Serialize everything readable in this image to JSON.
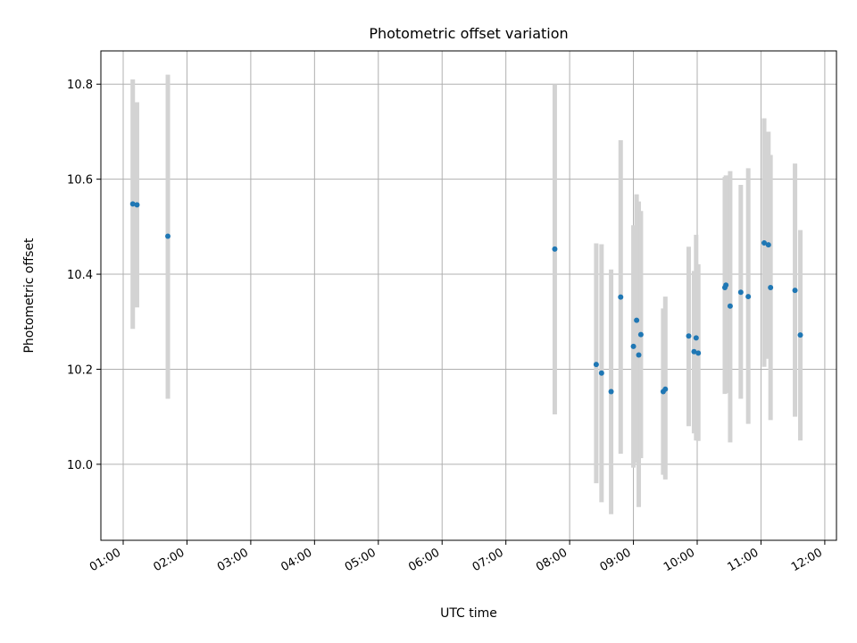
{
  "chart_data": {
    "type": "scatter",
    "title": "Photometric offset variation",
    "xlabel": "UTC time",
    "ylabel": "Photometric offset",
    "x_tick_labels": [
      "01:00",
      "02:00",
      "03:00",
      "04:00",
      "05:00",
      "06:00",
      "07:00",
      "08:00",
      "09:00",
      "10:00",
      "11:00",
      "12:00"
    ],
    "xlim": [
      "00:39",
      "12:11"
    ],
    "ylim": [
      9.84,
      10.87
    ],
    "y_ticks": [
      10.0,
      10.2,
      10.4,
      10.6,
      10.8
    ],
    "y_tick_labels": [
      "10.0",
      "10.2",
      "10.4",
      "10.6",
      "10.8"
    ],
    "grid": true,
    "marker_color": "#1f77b4",
    "errorbar_color": "#d3d3d3",
    "series": [
      {
        "points": [
          {
            "x": "01:09",
            "y": 10.548,
            "ylo": 10.285,
            "yhi": 10.81
          },
          {
            "x": "01:13",
            "y": 10.546,
            "ylo": 10.33,
            "yhi": 10.762
          },
          {
            "x": "01:42",
            "y": 10.48,
            "ylo": 10.138,
            "yhi": 10.82
          },
          {
            "x": "07:46",
            "y": 10.453,
            "ylo": 10.105,
            "yhi": 10.8
          },
          {
            "x": "08:25",
            "y": 10.21,
            "ylo": 9.96,
            "yhi": 10.465
          },
          {
            "x": "08:30",
            "y": 10.192,
            "ylo": 9.92,
            "yhi": 10.463
          },
          {
            "x": "08:39",
            "y": 10.153,
            "ylo": 9.895,
            "yhi": 10.41
          },
          {
            "x": "08:48",
            "y": 10.352,
            "ylo": 10.022,
            "yhi": 10.682
          },
          {
            "x": "09:00",
            "y": 10.248,
            "ylo": 9.993,
            "yhi": 10.503
          },
          {
            "x": "09:03",
            "y": 10.303,
            "ylo": 10.003,
            "yhi": 10.568
          },
          {
            "x": "09:05",
            "y": 10.23,
            "ylo": 9.91,
            "yhi": 10.553
          },
          {
            "x": "09:07",
            "y": 10.273,
            "ylo": 10.013,
            "yhi": 10.533
          },
          {
            "x": "09:28",
            "y": 10.153,
            "ylo": 9.978,
            "yhi": 10.328
          },
          {
            "x": "09:30",
            "y": 10.158,
            "ylo": 9.968,
            "yhi": 10.353
          },
          {
            "x": "09:52",
            "y": 10.27,
            "ylo": 10.08,
            "yhi": 10.458
          },
          {
            "x": "09:57",
            "y": 10.237,
            "ylo": 10.065,
            "yhi": 10.407
          },
          {
            "x": "09:59",
            "y": 10.266,
            "ylo": 10.05,
            "yhi": 10.483
          },
          {
            "x": "10:01",
            "y": 10.234,
            "ylo": 10.049,
            "yhi": 10.421
          },
          {
            "x": "10:26",
            "y": 10.372,
            "ylo": 10.148,
            "yhi": 10.605
          },
          {
            "x": "10:27",
            "y": 10.377,
            "ylo": 10.15,
            "yhi": 10.608
          },
          {
            "x": "10:31",
            "y": 10.333,
            "ylo": 10.046,
            "yhi": 10.617
          },
          {
            "x": "10:41",
            "y": 10.362,
            "ylo": 10.138,
            "yhi": 10.588
          },
          {
            "x": "10:48",
            "y": 10.353,
            "ylo": 10.085,
            "yhi": 10.623
          },
          {
            "x": "11:03",
            "y": 10.466,
            "ylo": 10.205,
            "yhi": 10.728
          },
          {
            "x": "11:07",
            "y": 10.462,
            "ylo": 10.222,
            "yhi": 10.7
          },
          {
            "x": "11:09",
            "y": 10.372,
            "ylo": 10.093,
            "yhi": 10.651
          },
          {
            "x": "11:32",
            "y": 10.366,
            "ylo": 10.1,
            "yhi": 10.633
          },
          {
            "x": "11:37",
            "y": 10.272,
            "ylo": 10.05,
            "yhi": 10.493
          }
        ]
      }
    ]
  }
}
